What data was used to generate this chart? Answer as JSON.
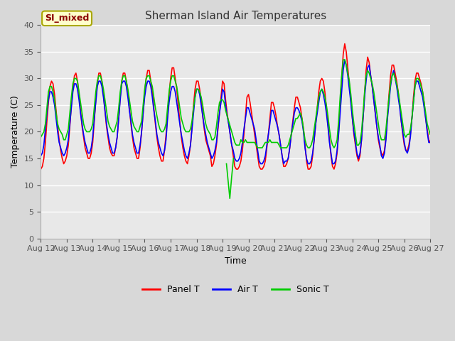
{
  "title": "Sherman Island Air Temperatures",
  "xlabel": "Time",
  "ylabel": "Temperature (C)",
  "ylim": [
    0,
    40
  ],
  "background_color": "#d8d8d8",
  "plot_bg_color": "#e8e8e8",
  "label_text": "SI_mixed",
  "label_bg": "#ffffcc",
  "label_border": "#8b0000",
  "legend_entries": [
    "Panel T",
    "Air T",
    "Sonic T"
  ],
  "line_colors": [
    "red",
    "blue",
    "#00cc00"
  ],
  "line_width": 1.2,
  "tick_labels": [
    "Aug 12",
    "Aug 13",
    "Aug 14",
    "Aug 15",
    "Aug 16",
    "Aug 17",
    "Aug 18",
    "Aug 19",
    "Aug 20",
    "Aug 21",
    "Aug 22",
    "Aug 23",
    "Aug 24",
    "Aug 25",
    "Aug 26",
    "Aug 27"
  ],
  "panel_data": [
    13.0,
    13.5,
    15.0,
    18.0,
    22.0,
    25.5,
    28.5,
    29.5,
    29.0,
    27.0,
    24.0,
    21.0,
    18.5,
    16.5,
    15.0,
    14.0,
    14.5,
    15.5,
    17.5,
    21.0,
    25.0,
    28.0,
    30.5,
    31.0,
    29.5,
    27.0,
    24.0,
    21.0,
    19.0,
    17.0,
    16.0,
    15.0,
    15.0,
    16.0,
    18.0,
    22.0,
    26.0,
    29.0,
    31.0,
    31.0,
    29.5,
    27.0,
    24.0,
    21.0,
    19.0,
    17.0,
    16.0,
    15.5,
    15.5,
    17.0,
    19.0,
    22.5,
    26.5,
    29.5,
    31.0,
    31.0,
    29.5,
    27.5,
    24.5,
    21.5,
    19.0,
    17.0,
    16.0,
    15.0,
    15.0,
    17.0,
    20.0,
    23.5,
    27.5,
    30.0,
    31.5,
    31.5,
    29.5,
    27.5,
    24.5,
    21.5,
    19.0,
    17.0,
    15.5,
    14.5,
    14.5,
    16.5,
    19.5,
    23.0,
    27.0,
    30.0,
    32.0,
    32.0,
    30.0,
    28.0,
    25.0,
    22.0,
    19.0,
    17.0,
    15.5,
    14.5,
    14.0,
    15.5,
    17.5,
    21.0,
    25.0,
    28.0,
    29.5,
    29.5,
    28.0,
    26.0,
    23.0,
    20.5,
    18.5,
    17.5,
    16.5,
    15.5,
    13.5,
    14.0,
    15.5,
    17.5,
    20.5,
    23.5,
    26.5,
    29.5,
    29.0,
    26.0,
    23.5,
    21.5,
    19.5,
    17.5,
    15.5,
    13.5,
    13.0,
    13.0,
    13.5,
    14.5,
    16.5,
    19.5,
    23.0,
    26.5,
    27.0,
    25.5,
    23.5,
    21.5,
    19.5,
    17.5,
    15.5,
    13.5,
    13.0,
    13.0,
    13.5,
    14.5,
    17.0,
    19.5,
    22.5,
    25.5,
    25.5,
    24.5,
    23.0,
    21.0,
    19.5,
    17.5,
    15.5,
    13.5,
    13.5,
    14.0,
    15.0,
    17.0,
    19.5,
    22.0,
    24.5,
    26.5,
    26.5,
    25.5,
    24.5,
    22.5,
    20.5,
    17.5,
    14.5,
    13.0,
    13.0,
    13.5,
    15.5,
    18.5,
    21.5,
    24.5,
    27.5,
    29.5,
    30.0,
    29.5,
    27.5,
    24.5,
    21.5,
    18.5,
    15.5,
    13.5,
    13.0,
    14.0,
    16.0,
    20.0,
    25.0,
    30.0,
    34.5,
    36.5,
    35.0,
    32.0,
    29.0,
    26.0,
    22.5,
    19.5,
    17.5,
    15.5,
    14.5,
    15.5,
    18.5,
    22.5,
    27.0,
    31.5,
    34.0,
    33.0,
    30.5,
    28.5,
    26.0,
    23.5,
    21.0,
    18.5,
    17.0,
    16.0,
    15.5,
    16.5,
    19.0,
    23.0,
    27.0,
    30.5,
    32.5,
    32.5,
    31.0,
    29.5,
    27.5,
    25.0,
    22.0,
    19.5,
    17.5,
    16.5,
    16.5,
    17.5,
    19.5,
    22.5,
    26.5,
    29.5,
    31.0,
    31.0,
    30.0,
    29.0,
    27.5,
    25.5,
    22.5,
    20.5,
    18.5,
    18.0
  ],
  "air_data": [
    15.5,
    16.0,
    17.5,
    20.5,
    23.5,
    26.0,
    27.5,
    27.5,
    26.5,
    25.0,
    22.5,
    20.0,
    18.0,
    17.0,
    16.0,
    15.5,
    16.0,
    17.0,
    18.5,
    21.5,
    24.5,
    27.5,
    29.0,
    29.0,
    28.0,
    26.0,
    23.5,
    21.5,
    19.5,
    18.0,
    17.0,
    16.0,
    16.0,
    17.0,
    19.0,
    22.5,
    25.5,
    28.5,
    29.5,
    29.5,
    28.5,
    26.5,
    24.0,
    21.5,
    19.5,
    18.0,
    17.0,
    16.0,
    16.0,
    17.0,
    19.0,
    22.5,
    26.0,
    29.0,
    29.5,
    29.5,
    28.5,
    26.5,
    24.0,
    22.0,
    19.5,
    18.0,
    17.0,
    16.0,
    16.0,
    17.5,
    20.0,
    23.5,
    26.5,
    28.5,
    29.5,
    29.5,
    28.5,
    26.5,
    24.0,
    22.0,
    19.5,
    18.0,
    17.0,
    16.0,
    15.5,
    16.5,
    18.5,
    22.5,
    25.5,
    27.5,
    28.5,
    28.5,
    27.5,
    25.5,
    23.5,
    21.5,
    19.5,
    18.0,
    16.5,
    15.5,
    15.0,
    16.0,
    17.5,
    20.5,
    23.5,
    26.5,
    28.0,
    28.0,
    27.0,
    25.0,
    23.0,
    21.0,
    19.5,
    18.0,
    17.0,
    16.0,
    15.0,
    15.5,
    16.5,
    18.0,
    21.0,
    23.5,
    25.5,
    28.0,
    27.5,
    25.0,
    23.0,
    21.5,
    19.5,
    17.5,
    16.5,
    15.0,
    14.5,
    14.5,
    15.0,
    16.0,
    18.0,
    20.5,
    22.5,
    24.5,
    24.5,
    23.5,
    22.5,
    21.5,
    20.5,
    18.5,
    16.5,
    14.5,
    14.0,
    14.0,
    14.5,
    15.5,
    17.5,
    19.5,
    21.5,
    24.0,
    24.0,
    23.0,
    22.0,
    21.0,
    19.5,
    17.5,
    15.5,
    14.0,
    14.5,
    14.5,
    15.0,
    17.0,
    19.5,
    21.5,
    23.5,
    24.5,
    24.5,
    24.0,
    23.0,
    22.0,
    20.0,
    17.0,
    15.0,
    14.0,
    14.0,
    14.5,
    16.0,
    18.5,
    21.5,
    23.5,
    25.5,
    27.5,
    28.0,
    27.0,
    25.5,
    23.5,
    21.0,
    18.0,
    16.0,
    14.0,
    14.0,
    14.5,
    16.5,
    19.5,
    23.5,
    27.5,
    31.5,
    33.5,
    32.5,
    30.5,
    28.0,
    25.5,
    22.5,
    20.0,
    18.0,
    16.0,
    15.0,
    16.0,
    18.5,
    22.5,
    26.5,
    29.5,
    32.0,
    32.5,
    30.5,
    28.5,
    26.0,
    23.5,
    21.0,
    19.0,
    17.5,
    15.5,
    15.0,
    16.0,
    18.5,
    22.5,
    25.5,
    28.5,
    30.5,
    31.5,
    30.0,
    28.5,
    26.5,
    24.5,
    22.0,
    20.0,
    18.0,
    16.5,
    16.0,
    17.0,
    19.0,
    22.5,
    25.5,
    28.5,
    29.5,
    29.5,
    28.5,
    27.5,
    26.5,
    24.5,
    22.5,
    20.0,
    18.0,
    18.0
  ],
  "sonic_data": [
    19.0,
    19.5,
    20.0,
    21.5,
    24.5,
    27.5,
    28.5,
    28.5,
    27.5,
    26.0,
    23.5,
    21.5,
    20.5,
    20.0,
    19.5,
    18.5,
    18.5,
    19.5,
    20.5,
    23.5,
    26.5,
    29.0,
    30.0,
    30.0,
    29.5,
    27.5,
    25.5,
    23.5,
    21.5,
    20.5,
    20.0,
    20.0,
    20.0,
    20.5,
    21.5,
    24.5,
    27.5,
    29.5,
    30.5,
    30.5,
    29.5,
    28.0,
    26.0,
    24.0,
    22.0,
    21.0,
    20.5,
    20.0,
    20.0,
    21.0,
    22.0,
    24.5,
    27.5,
    29.5,
    30.5,
    30.5,
    29.5,
    28.0,
    26.0,
    24.0,
    22.0,
    21.0,
    20.5,
    20.0,
    20.0,
    21.0,
    22.0,
    25.0,
    28.0,
    30.0,
    30.5,
    30.5,
    29.5,
    28.5,
    26.5,
    24.5,
    23.0,
    21.5,
    20.5,
    20.0,
    20.0,
    20.5,
    21.5,
    24.5,
    27.5,
    29.5,
    30.5,
    30.5,
    29.5,
    28.5,
    26.5,
    24.5,
    22.5,
    21.5,
    20.5,
    20.0,
    20.0,
    20.0,
    20.5,
    22.0,
    24.5,
    26.5,
    28.0,
    28.0,
    27.5,
    26.5,
    25.0,
    23.0,
    21.5,
    20.5,
    20.0,
    19.5,
    18.5,
    18.5,
    19.0,
    21.0,
    23.5,
    25.5,
    26.0,
    26.0,
    25.5,
    24.0,
    23.0,
    22.0,
    21.0,
    20.0,
    19.0,
    18.0,
    17.5,
    17.5,
    17.5,
    18.5,
    18.0,
    18.0,
    18.5,
    18.0,
    18.0,
    18.0,
    18.0,
    18.0,
    18.0,
    17.5,
    17.0,
    17.0,
    17.0,
    17.0,
    17.5,
    18.0,
    18.0,
    18.0,
    18.5,
    18.0,
    18.0,
    18.0,
    18.0,
    18.0,
    17.5,
    17.0,
    17.0,
    17.0,
    17.0,
    17.0,
    17.5,
    18.5,
    19.5,
    20.5,
    21.5,
    22.5,
    22.5,
    23.0,
    23.5,
    22.5,
    20.5,
    18.5,
    17.5,
    17.0,
    17.0,
    17.5,
    18.5,
    20.5,
    22.5,
    24.5,
    26.5,
    27.5,
    28.0,
    27.5,
    26.5,
    25.0,
    23.0,
    20.5,
    18.5,
    17.5,
    17.0,
    17.5,
    18.5,
    22.0,
    26.5,
    30.5,
    33.5,
    33.5,
    32.5,
    31.0,
    29.5,
    27.0,
    24.0,
    21.5,
    19.5,
    17.5,
    17.5,
    18.0,
    20.0,
    23.5,
    27.5,
    30.5,
    31.5,
    31.0,
    30.0,
    29.0,
    27.5,
    25.5,
    23.5,
    21.5,
    19.5,
    18.5,
    18.5,
    18.5,
    20.5,
    23.5,
    26.5,
    29.0,
    30.5,
    31.0,
    30.0,
    29.0,
    27.5,
    25.5,
    23.5,
    21.5,
    19.5,
    19.0,
    19.5,
    19.5,
    20.5,
    22.5,
    25.5,
    28.5,
    30.0,
    30.0,
    29.5,
    28.5,
    27.5,
    25.5,
    23.5,
    21.5,
    20.5,
    19.5
  ],
  "sonic_spike_x": [
    7.15,
    7.22,
    7.28,
    7.35,
    7.42
  ],
  "sonic_spike_y": [
    14.0,
    10.5,
    7.5,
    11.5,
    15.0
  ]
}
